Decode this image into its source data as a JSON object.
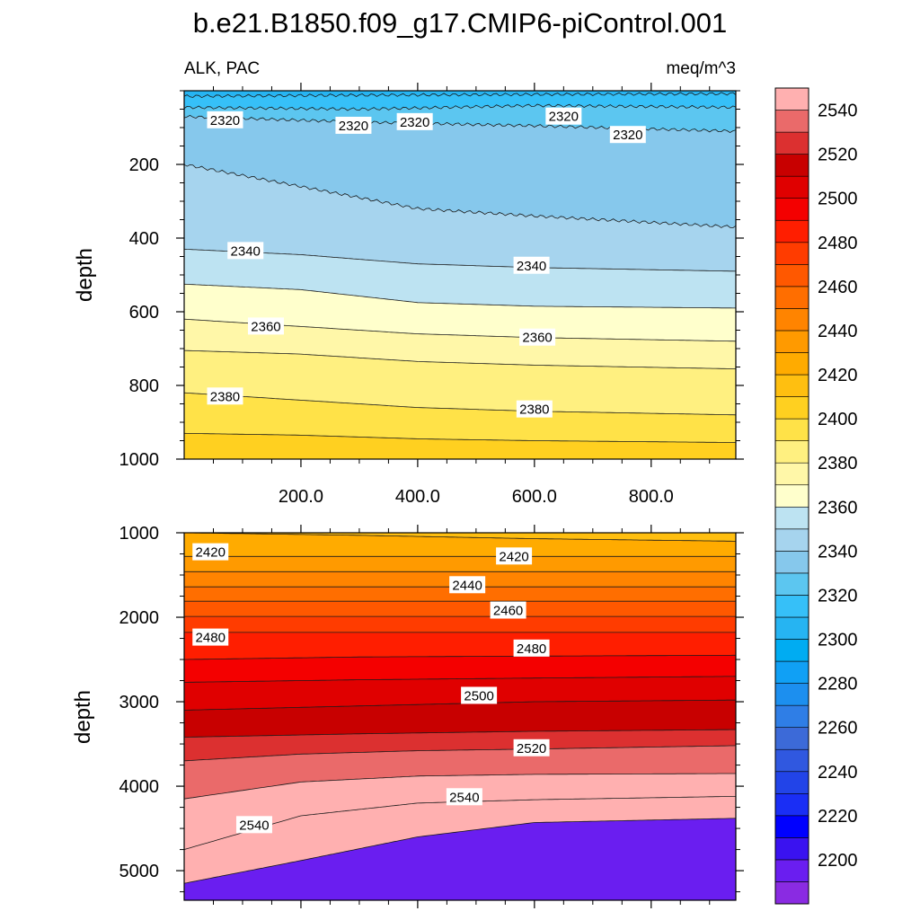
{
  "title": "b.e21.B1850.f09_g17.CMIP6-piControl.001",
  "chart_data": [
    {
      "type": "contour",
      "panel": "upper",
      "left_label": "ALK, PAC",
      "right_label": "meq/m^3",
      "ylabel": "depth",
      "xlabel": "",
      "xlim": [
        0,
        945
      ],
      "ylim": [
        1000,
        0
      ],
      "y_reversed": true,
      "x_ticks": [
        "200.0",
        "400.0",
        "600.0",
        "800.0"
      ],
      "x_tick_values": [
        200,
        400,
        600,
        800
      ],
      "y_ticks": [
        "200",
        "400",
        "600",
        "800",
        "1000"
      ],
      "y_tick_values": [
        200,
        400,
        600,
        800,
        1000
      ],
      "contour_interval": 10,
      "contours": [
        {
          "level": 2300,
          "depth": [
            [
              0,
              15
            ],
            [
              300,
              12
            ],
            [
              600,
              10
            ],
            [
              945,
              8
            ]
          ]
        },
        {
          "level": 2310,
          "depth": [
            [
              0,
              45
            ],
            [
              300,
              50
            ],
            [
              600,
              40
            ],
            [
              945,
              45
            ]
          ]
        },
        {
          "level": 2320,
          "depth": [
            [
              0,
              70
            ],
            [
              300,
              85
            ],
            [
              600,
              95
            ],
            [
              945,
              110
            ]
          ]
        },
        {
          "level": 2330,
          "depth": [
            [
              0,
              200
            ],
            [
              200,
              260
            ],
            [
              400,
              320
            ],
            [
              600,
              340
            ],
            [
              945,
              370
            ]
          ]
        },
        {
          "level": 2340,
          "depth": [
            [
              0,
              430
            ],
            [
              200,
              445
            ],
            [
              400,
              470
            ],
            [
              600,
              480
            ],
            [
              945,
              490
            ]
          ]
        },
        {
          "level": 2350,
          "depth": [
            [
              0,
              525
            ],
            [
              200,
              540
            ],
            [
              400,
              575
            ],
            [
              600,
              585
            ],
            [
              945,
              590
            ]
          ]
        },
        {
          "level": 2360,
          "depth": [
            [
              0,
              620
            ],
            [
              200,
              640
            ],
            [
              400,
              660
            ],
            [
              600,
              670
            ],
            [
              945,
              680
            ]
          ]
        },
        {
          "level": 2370,
          "depth": [
            [
              0,
              705
            ],
            [
              200,
              715
            ],
            [
              400,
              735
            ],
            [
              600,
              745
            ],
            [
              945,
              755
            ]
          ]
        },
        {
          "level": 2380,
          "depth": [
            [
              0,
              820
            ],
            [
              200,
              840
            ],
            [
              400,
              860
            ],
            [
              600,
              870
            ],
            [
              945,
              880
            ]
          ]
        },
        {
          "level": 2390,
          "depth": [
            [
              0,
              930
            ],
            [
              200,
              935
            ],
            [
              400,
              945
            ],
            [
              600,
              950
            ],
            [
              945,
              955
            ]
          ]
        }
      ],
      "labels": [
        {
          "text": "2320",
          "x": 70,
          "depth": 80
        },
        {
          "text": "2320",
          "x": 290,
          "depth": 95
        },
        {
          "text": "2320",
          "x": 395,
          "depth": 85
        },
        {
          "text": "2320",
          "x": 650,
          "depth": 70
        },
        {
          "text": "2320",
          "x": 760,
          "depth": 120
        },
        {
          "text": "2340",
          "x": 105,
          "depth": 435
        },
        {
          "text": "2340",
          "x": 595,
          "depth": 475
        },
        {
          "text": "2360",
          "x": 140,
          "depth": 640
        },
        {
          "text": "2360",
          "x": 605,
          "depth": 670
        },
        {
          "text": "2380",
          "x": 70,
          "depth": 830
        },
        {
          "text": "2380",
          "x": 600,
          "depth": 865
        }
      ]
    },
    {
      "type": "contour",
      "panel": "lower",
      "ylabel": "depth",
      "xlabel": "",
      "xlim": [
        0,
        945
      ],
      "ylim": [
        5350,
        1000
      ],
      "y_reversed": true,
      "x_ticks": [],
      "y_ticks": [
        "1000",
        "2000",
        "3000",
        "4000",
        "5000"
      ],
      "y_tick_values": [
        1000,
        2000,
        3000,
        4000,
        5000
      ],
      "contour_interval": 10,
      "contours": [
        {
          "level": 2410,
          "depth": [
            [
              0,
              1000
            ],
            [
              300,
              1030
            ],
            [
              600,
              1070
            ],
            [
              945,
              1100
            ]
          ]
        },
        {
          "level": 2420,
          "depth": [
            [
              0,
              1280
            ],
            [
              300,
              1280
            ],
            [
              600,
              1280
            ],
            [
              945,
              1280
            ]
          ]
        },
        {
          "level": 2430,
          "depth": [
            [
              0,
              1460
            ],
            [
              300,
              1460
            ],
            [
              600,
              1460
            ],
            [
              945,
              1460
            ]
          ]
        },
        {
          "level": 2440,
          "depth": [
            [
              0,
              1640
            ],
            [
              300,
              1640
            ],
            [
              600,
              1640
            ],
            [
              945,
              1640
            ]
          ]
        },
        {
          "level": 2450,
          "depth": [
            [
              0,
              1810
            ],
            [
              300,
              1810
            ],
            [
              600,
              1810
            ],
            [
              945,
              1810
            ]
          ]
        },
        {
          "level": 2460,
          "depth": [
            [
              0,
              1990
            ],
            [
              300,
              1990
            ],
            [
              600,
              1990
            ],
            [
              945,
              1990
            ]
          ]
        },
        {
          "level": 2470,
          "depth": [
            [
              0,
              2180
            ],
            [
              300,
              2180
            ],
            [
              600,
              2180
            ],
            [
              945,
              2180
            ]
          ]
        },
        {
          "level": 2480,
          "depth": [
            [
              0,
              2500
            ],
            [
              300,
              2470
            ],
            [
              600,
              2460
            ],
            [
              945,
              2450
            ]
          ]
        },
        {
          "level": 2490,
          "depth": [
            [
              0,
              2770
            ],
            [
              300,
              2740
            ],
            [
              600,
              2720
            ],
            [
              945,
              2700
            ]
          ]
        },
        {
          "level": 2500,
          "depth": [
            [
              0,
              3100
            ],
            [
              300,
              3050
            ],
            [
              600,
              3000
            ],
            [
              945,
              2980
            ]
          ]
        },
        {
          "level": 2510,
          "depth": [
            [
              0,
              3420
            ],
            [
              300,
              3380
            ],
            [
              600,
              3350
            ],
            [
              945,
              3330
            ]
          ]
        },
        {
          "level": 2520,
          "depth": [
            [
              0,
              3700
            ],
            [
              200,
              3620
            ],
            [
              400,
              3580
            ],
            [
              600,
              3560
            ],
            [
              945,
              3520
            ]
          ]
        },
        {
          "level": 2530,
          "depth": [
            [
              0,
              4150
            ],
            [
              200,
              3950
            ],
            [
              400,
              3880
            ],
            [
              600,
              3860
            ],
            [
              945,
              3850
            ]
          ]
        },
        {
          "level": 2540,
          "depth": [
            [
              0,
              4750
            ],
            [
              200,
              4350
            ],
            [
              400,
              4200
            ],
            [
              600,
              4160
            ],
            [
              945,
              4120
            ]
          ]
        },
        {
          "level": 2550,
          "depth": [
            [
              0,
              5150
            ],
            [
              200,
              4880
            ],
            [
              400,
              4600
            ],
            [
              600,
              4430
            ],
            [
              945,
              4380
            ]
          ]
        }
      ],
      "labels": [
        {
          "text": "2420",
          "x": 45,
          "depth": 1230
        },
        {
          "text": "2420",
          "x": 565,
          "depth": 1280
        },
        {
          "text": "2440",
          "x": 485,
          "depth": 1620
        },
        {
          "text": "2460",
          "x": 555,
          "depth": 1920
        },
        {
          "text": "2480",
          "x": 45,
          "depth": 2240
        },
        {
          "text": "2480",
          "x": 595,
          "depth": 2370
        },
        {
          "text": "2500",
          "x": 505,
          "depth": 2930
        },
        {
          "text": "2520",
          "x": 595,
          "depth": 3550
        },
        {
          "text": "2540",
          "x": 480,
          "depth": 4130
        },
        {
          "text": "2540",
          "x": 120,
          "depth": 4460
        }
      ]
    }
  ],
  "colorbar": {
    "labels": [
      "2200",
      "2220",
      "2240",
      "2260",
      "2280",
      "2300",
      "2320",
      "2340",
      "2360",
      "2380",
      "2400",
      "2420",
      "2440",
      "2460",
      "2480",
      "2500",
      "2520",
      "2540"
    ],
    "levels": [
      2190,
      2200,
      2210,
      2220,
      2230,
      2240,
      2250,
      2260,
      2270,
      2280,
      2290,
      2300,
      2310,
      2320,
      2330,
      2340,
      2350,
      2360,
      2370,
      2380,
      2390,
      2400,
      2410,
      2420,
      2430,
      2440,
      2450,
      2460,
      2470,
      2480,
      2490,
      2500,
      2510,
      2520,
      2530,
      2540,
      2550
    ],
    "colors": [
      "#8a2be2",
      "#6a1ef0",
      "#3a12f0",
      "#0000ff",
      "#1a2ef5",
      "#2244e8",
      "#3058e0",
      "#3c6ad8",
      "#2f7ee6",
      "#1c8fef",
      "#10a0f5",
      "#00acf2",
      "#26b4f2",
      "#36c0f8",
      "#5cc6f0",
      "#86c8ec",
      "#a6d4ee",
      "#bde3f2",
      "#ffffcc",
      "#fff7a8",
      "#fff080",
      "#ffe248",
      "#ffd020",
      "#ffbf10",
      "#ffab00",
      "#ff9a00",
      "#ff8400",
      "#ff6e00",
      "#ff5800",
      "#ff3c00",
      "#ff1e00",
      "#f40000",
      "#e00000",
      "#c80000",
      "#dc3030",
      "#ea6a6a",
      "#ffb0b0"
    ]
  }
}
